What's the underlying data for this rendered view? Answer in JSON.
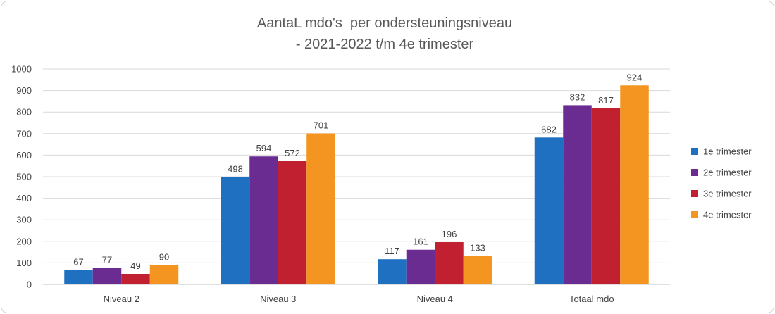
{
  "chart_data": {
    "type": "bar",
    "title": "AantaL mdo's  per ondersteuningsniveau",
    "subtitle": "- 2021-2022 t/m 4e trimester",
    "categories": [
      "Niveau 2",
      "Niveau 3",
      "Niveau 4",
      "Totaal mdo"
    ],
    "series": [
      {
        "name": "1e trimester",
        "values": [
          67,
          498,
          117,
          682
        ],
        "color": "#1f70c1"
      },
      {
        "name": "2e trimester",
        "values": [
          77,
          594,
          161,
          832
        ],
        "color": "#6a2c91"
      },
      {
        "name": "3e trimester",
        "values": [
          49,
          572,
          196,
          817
        ],
        "color": "#c0202f"
      },
      {
        "name": "4e trimester",
        "values": [
          90,
          701,
          133,
          924
        ],
        "color": "#f39520"
      }
    ],
    "ylim": [
      0,
      1000
    ],
    "yticks": [
      "0",
      "100",
      "200",
      "300",
      "400",
      "500",
      "600",
      "700",
      "800",
      "900",
      "1000"
    ],
    "grid": true,
    "legend_position": "right"
  }
}
